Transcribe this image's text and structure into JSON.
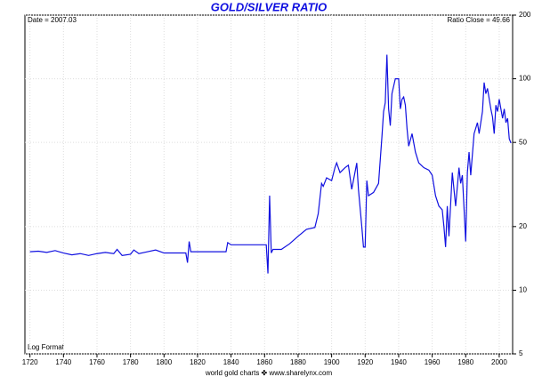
{
  "chart_data": {
    "type": "line",
    "title": "GOLD/SILVER RATIO",
    "annotations": {
      "date": "Date = 2007.03",
      "close": "Ratio Close = 49.66",
      "scale": "Log Format",
      "footer": "world gold charts ✤ www.sharelynx.com"
    },
    "x": [
      1720,
      1725,
      1730,
      1735,
      1740,
      1745,
      1750,
      1755,
      1760,
      1765,
      1770,
      1772,
      1775,
      1780,
      1782,
      1785,
      1790,
      1795,
      1800,
      1805,
      1810,
      1813,
      1814,
      1815,
      1816,
      1820,
      1830,
      1837,
      1838,
      1840,
      1850,
      1861,
      1862,
      1863,
      1864,
      1865,
      1870,
      1875,
      1880,
      1885,
      1890,
      1892,
      1894,
      1895,
      1897,
      1900,
      1902,
      1903,
      1905,
      1908,
      1910,
      1912,
      1915,
      1916,
      1918,
      1919,
      1920,
      1921,
      1922,
      1925,
      1928,
      1930,
      1931,
      1932,
      1933,
      1934,
      1935,
      1936,
      1938,
      1940,
      1941,
      1942,
      1943,
      1944,
      1945,
      1946,
      1948,
      1950,
      1952,
      1955,
      1958,
      1960,
      1962,
      1964,
      1966,
      1967,
      1968,
      1969,
      1970,
      1972,
      1974,
      1976,
      1977,
      1978,
      1980,
      1981,
      1982,
      1983,
      1985,
      1987,
      1988,
      1990,
      1991,
      1992,
      1993,
      1995,
      1996,
      1997,
      1998,
      1999,
      2000,
      2001,
      2002,
      2003,
      2004,
      2005,
      2006,
      2007
    ],
    "values": [
      15.2,
      15.3,
      15.1,
      15.4,
      15.0,
      14.7,
      14.9,
      14.6,
      14.9,
      15.1,
      14.9,
      15.6,
      14.6,
      14.8,
      15.5,
      14.9,
      15.2,
      15.5,
      15.0,
      15.0,
      15.0,
      15.0,
      13.5,
      17,
      15.2,
      15.2,
      15.2,
      15.2,
      16.8,
      16.4,
      16.4,
      16.4,
      12,
      28,
      15,
      15.6,
      15.6,
      16.6,
      18,
      19.4,
      19.8,
      23,
      32,
      31,
      34,
      33,
      38,
      40,
      36,
      38,
      39,
      30,
      40,
      30,
      20,
      16,
      16,
      33,
      28,
      29,
      32,
      53,
      70,
      77,
      130,
      72,
      60,
      85,
      100,
      100,
      72,
      80,
      82,
      75,
      58,
      48,
      55,
      45,
      40,
      38,
      37,
      35,
      28,
      25,
      24,
      20,
      16,
      25,
      18,
      36,
      25,
      38,
      32,
      35,
      17,
      36,
      45,
      35,
      55,
      62,
      55,
      70,
      96,
      85,
      90,
      72,
      66,
      55,
      75,
      70,
      80,
      72,
      65,
      72,
      62,
      65,
      52,
      49.66
    ],
    "color": "#1010e0",
    "xlim": [
      1717,
      2008
    ],
    "xticks": [
      1720,
      1740,
      1760,
      1780,
      1800,
      1820,
      1840,
      1860,
      1880,
      1900,
      1920,
      1940,
      1960,
      1980,
      2000
    ],
    "ylim": [
      5,
      200
    ],
    "yticks": [
      5,
      10,
      20,
      50,
      100,
      200
    ],
    "log_scale": true,
    "grid": true
  }
}
